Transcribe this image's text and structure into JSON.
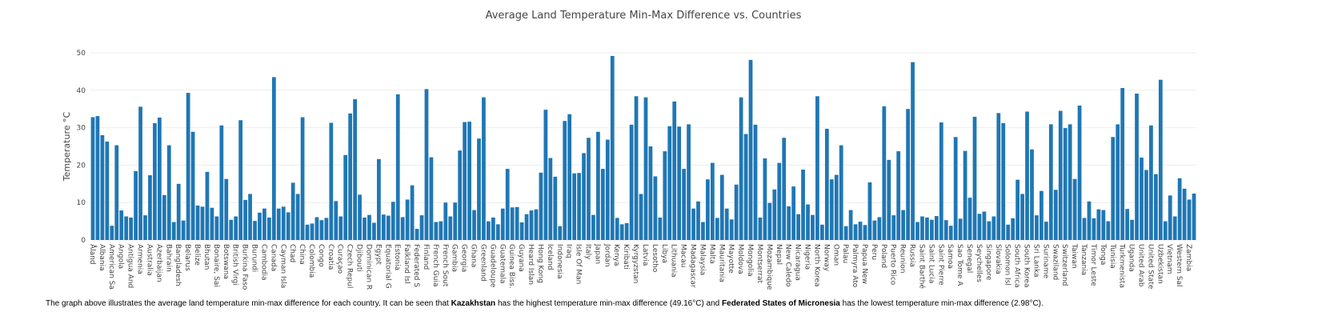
{
  "chart_data": {
    "type": "bar",
    "title": "Average Land Temperature Min-Max Difference vs. Countries",
    "y_label": "Temperature °C",
    "color": "#1f77b4",
    "ylim": [
      0,
      52
    ],
    "yticks": [
      0,
      10,
      20,
      30,
      40,
      50
    ],
    "grid": true,
    "categories": [
      "Åland",
      null,
      "Albania",
      null,
      "American Sa",
      null,
      "Angola",
      null,
      "Antigua And",
      null,
      "Armenia",
      null,
      "Australia",
      null,
      "Azerbaijan",
      null,
      "Bahrain",
      null,
      "Bangladesh",
      null,
      "Belarus",
      null,
      "Belize",
      null,
      "Bhutan",
      null,
      "Bonaire, Sai",
      null,
      "Botswana",
      null,
      "British Virgi",
      null,
      "Burkina Faso",
      null,
      "Burundi",
      null,
      "Cambodia",
      null,
      "Canada",
      null,
      "Cayman Isla",
      null,
      "Chad",
      null,
      "China",
      null,
      "Colombia",
      null,
      "Congo",
      null,
      "Croatia",
      null,
      "Curaçao",
      null,
      "Czech Repul",
      null,
      "Djibouti",
      null,
      "Dominican R",
      null,
      "Egypt",
      null,
      "Equatorial G",
      null,
      "Estonia",
      null,
      "Falkland Isl",
      null,
      "Federated S",
      null,
      "Finland",
      null,
      "French Guia",
      null,
      "French Sout",
      null,
      "Gambia",
      null,
      "Georgia",
      null,
      "Ghana",
      null,
      "Greenland",
      null,
      "Guadeloupe",
      null,
      "Guatemala",
      null,
      "Guinea Biss.",
      null,
      "Guyana",
      null,
      "Heard Islan",
      null,
      "Hong Kong",
      null,
      "Iceland",
      null,
      "Indonesia",
      null,
      "Iraq",
      null,
      "Isle Of Man",
      null,
      "Italy",
      null,
      "Japan",
      null,
      "Jordan",
      null,
      "Kenya",
      null,
      "Kiribati",
      null,
      "Kyrgyzstan",
      null,
      "Latvia",
      null,
      "Lesotho",
      null,
      "Libya",
      null,
      "Lithuania",
      null,
      "Macau",
      null,
      "Madagascar",
      null,
      "Malaysia",
      null,
      "Malta",
      null,
      "Mauritania",
      null,
      "Mayotte",
      null,
      "Moldova",
      null,
      "Mongolia",
      null,
      "Montserrat",
      null,
      "Mozambique",
      null,
      "Nepal",
      null,
      "New Caledo",
      null,
      "Nicaragua",
      null,
      "Nigeria",
      null,
      "North Korea",
      null,
      "Norway",
      null,
      "Oman",
      null,
      "Palau",
      null,
      "Palmyra Ato",
      null,
      "Papua New",
      null,
      "Peru",
      null,
      "Poland",
      null,
      "Puerto Rico",
      null,
      "Reunion",
      null,
      "Russia",
      null,
      "Saint Barthé",
      null,
      "Saint Lucia",
      null,
      "Saint Pierre",
      null,
      "Samoa",
      null,
      "Sao Tome A",
      null,
      "Senegal",
      null,
      "Seychelles",
      null,
      "Singapore",
      null,
      "Slovakia",
      null,
      "Solomon Isl",
      null,
      "South Africa",
      null,
      "South Korea",
      null,
      "Sri Lanka",
      null,
      "Suriname",
      null,
      "Swaziland",
      null,
      "Switzerland",
      null,
      "Taiwan",
      null,
      "Tanzania",
      null,
      "Timor Leste",
      null,
      "Tonga",
      null,
      "Tunisia",
      null,
      "Turkmenista",
      null,
      "Uganda",
      null,
      "United Arab",
      null,
      "United State",
      null,
      "Uzbekistan",
      null,
      "Vietnam",
      null,
      "Western Sal",
      null,
      "Zambia",
      null
    ],
    "values": [
      32.8,
      33.1,
      28,
      26.3,
      3.8,
      25.3,
      7.9,
      6.3,
      6,
      18.4,
      35.6,
      6.6,
      17.3,
      31.2,
      32.7,
      12,
      25.3,
      4.8,
      15,
      5.2,
      39.3,
      28.9,
      9.2,
      8.9,
      18.2,
      8.6,
      6.3,
      30.6,
      16.3,
      5.4,
      6.3,
      32,
      10.7,
      12.3,
      5.1,
      7.3,
      8.4,
      6,
      43.5,
      8.4,
      8.9,
      7.4,
      15.3,
      12.3,
      32.8,
      4.1,
      4.4,
      6.1,
      5.3,
      5.9,
      31.3,
      10.4,
      6.3,
      22.7,
      33.8,
      37.6,
      12.1,
      6,
      6.7,
      4.6,
      21.6,
      6.8,
      6.5,
      10.2,
      38.9,
      6.1,
      10.8,
      14.6,
      2.98,
      6.6,
      40.3,
      22.1,
      4.8,
      5,
      10,
      6.3,
      10,
      23.9,
      31.5,
      31.6,
      8,
      27.1,
      38.1,
      5,
      6,
      4.2,
      8.4,
      19,
      8.7,
      8.8,
      4.7,
      6.9,
      7.9,
      8.2,
      18,
      34.8,
      21.9,
      16.9,
      3.7,
      31.8,
      33.6,
      17.8,
      17.9,
      23.2,
      27.3,
      6.7,
      28.9,
      19,
      26.8,
      49.16,
      5.9,
      4.2,
      4.5,
      30.8,
      38.4,
      12.3,
      38.1,
      25,
      17,
      6,
      23.7,
      30.4,
      37,
      30.3,
      19,
      30.9,
      8.4,
      10.3,
      4.8,
      16.2,
      20.6,
      5.9,
      17.4,
      8.4,
      5.5,
      14.8,
      38.1,
      28.3,
      48.1,
      30.8,
      6,
      21.8,
      9.9,
      13.5,
      20.6,
      27.3,
      9,
      14.3,
      6.9,
      18.8,
      9.5,
      6.7,
      38.4,
      4.1,
      29.7,
      16.2,
      17.4,
      25.3,
      3.7,
      8,
      4.2,
      4.9,
      4,
      15.4,
      5.2,
      6.1,
      35.7,
      21.4,
      6.6,
      23.7,
      8,
      35,
      47.5,
      4.8,
      6.3,
      6,
      5.4,
      6.4,
      31.4,
      5.3,
      3.8,
      27.5,
      5.7,
      23.8,
      11.3,
      32.9,
      7,
      7.6,
      5,
      6.3,
      33.9,
      31.2,
      4.1,
      5.8,
      16.1,
      12.3,
      34.3,
      24.2,
      6.6,
      13.1,
      4.9,
      30.9,
      13.4,
      34.5,
      29.9,
      30.9,
      16.3,
      35.9,
      5.9,
      10.3,
      5.8,
      8.2,
      8,
      5,
      27.5,
      30.9,
      40.6,
      8.3,
      5.4,
      39.1,
      22,
      18.7,
      30.6,
      17.6,
      42.8,
      5,
      11.9,
      6.3,
      16.5,
      13.7,
      10.8,
      12.4
    ]
  },
  "caption": {
    "intro": "The graph above illustrates the average land temperature min-max difference for each country. It can be seen that ",
    "highest_country": "Kazakhstan",
    "middle": " has the highest temperature min-max difference (49.16°C) and ",
    "lowest_country": "Federated States of Micronesia",
    "end": " has the lowest temperature min-max difference (2.98°C)."
  }
}
